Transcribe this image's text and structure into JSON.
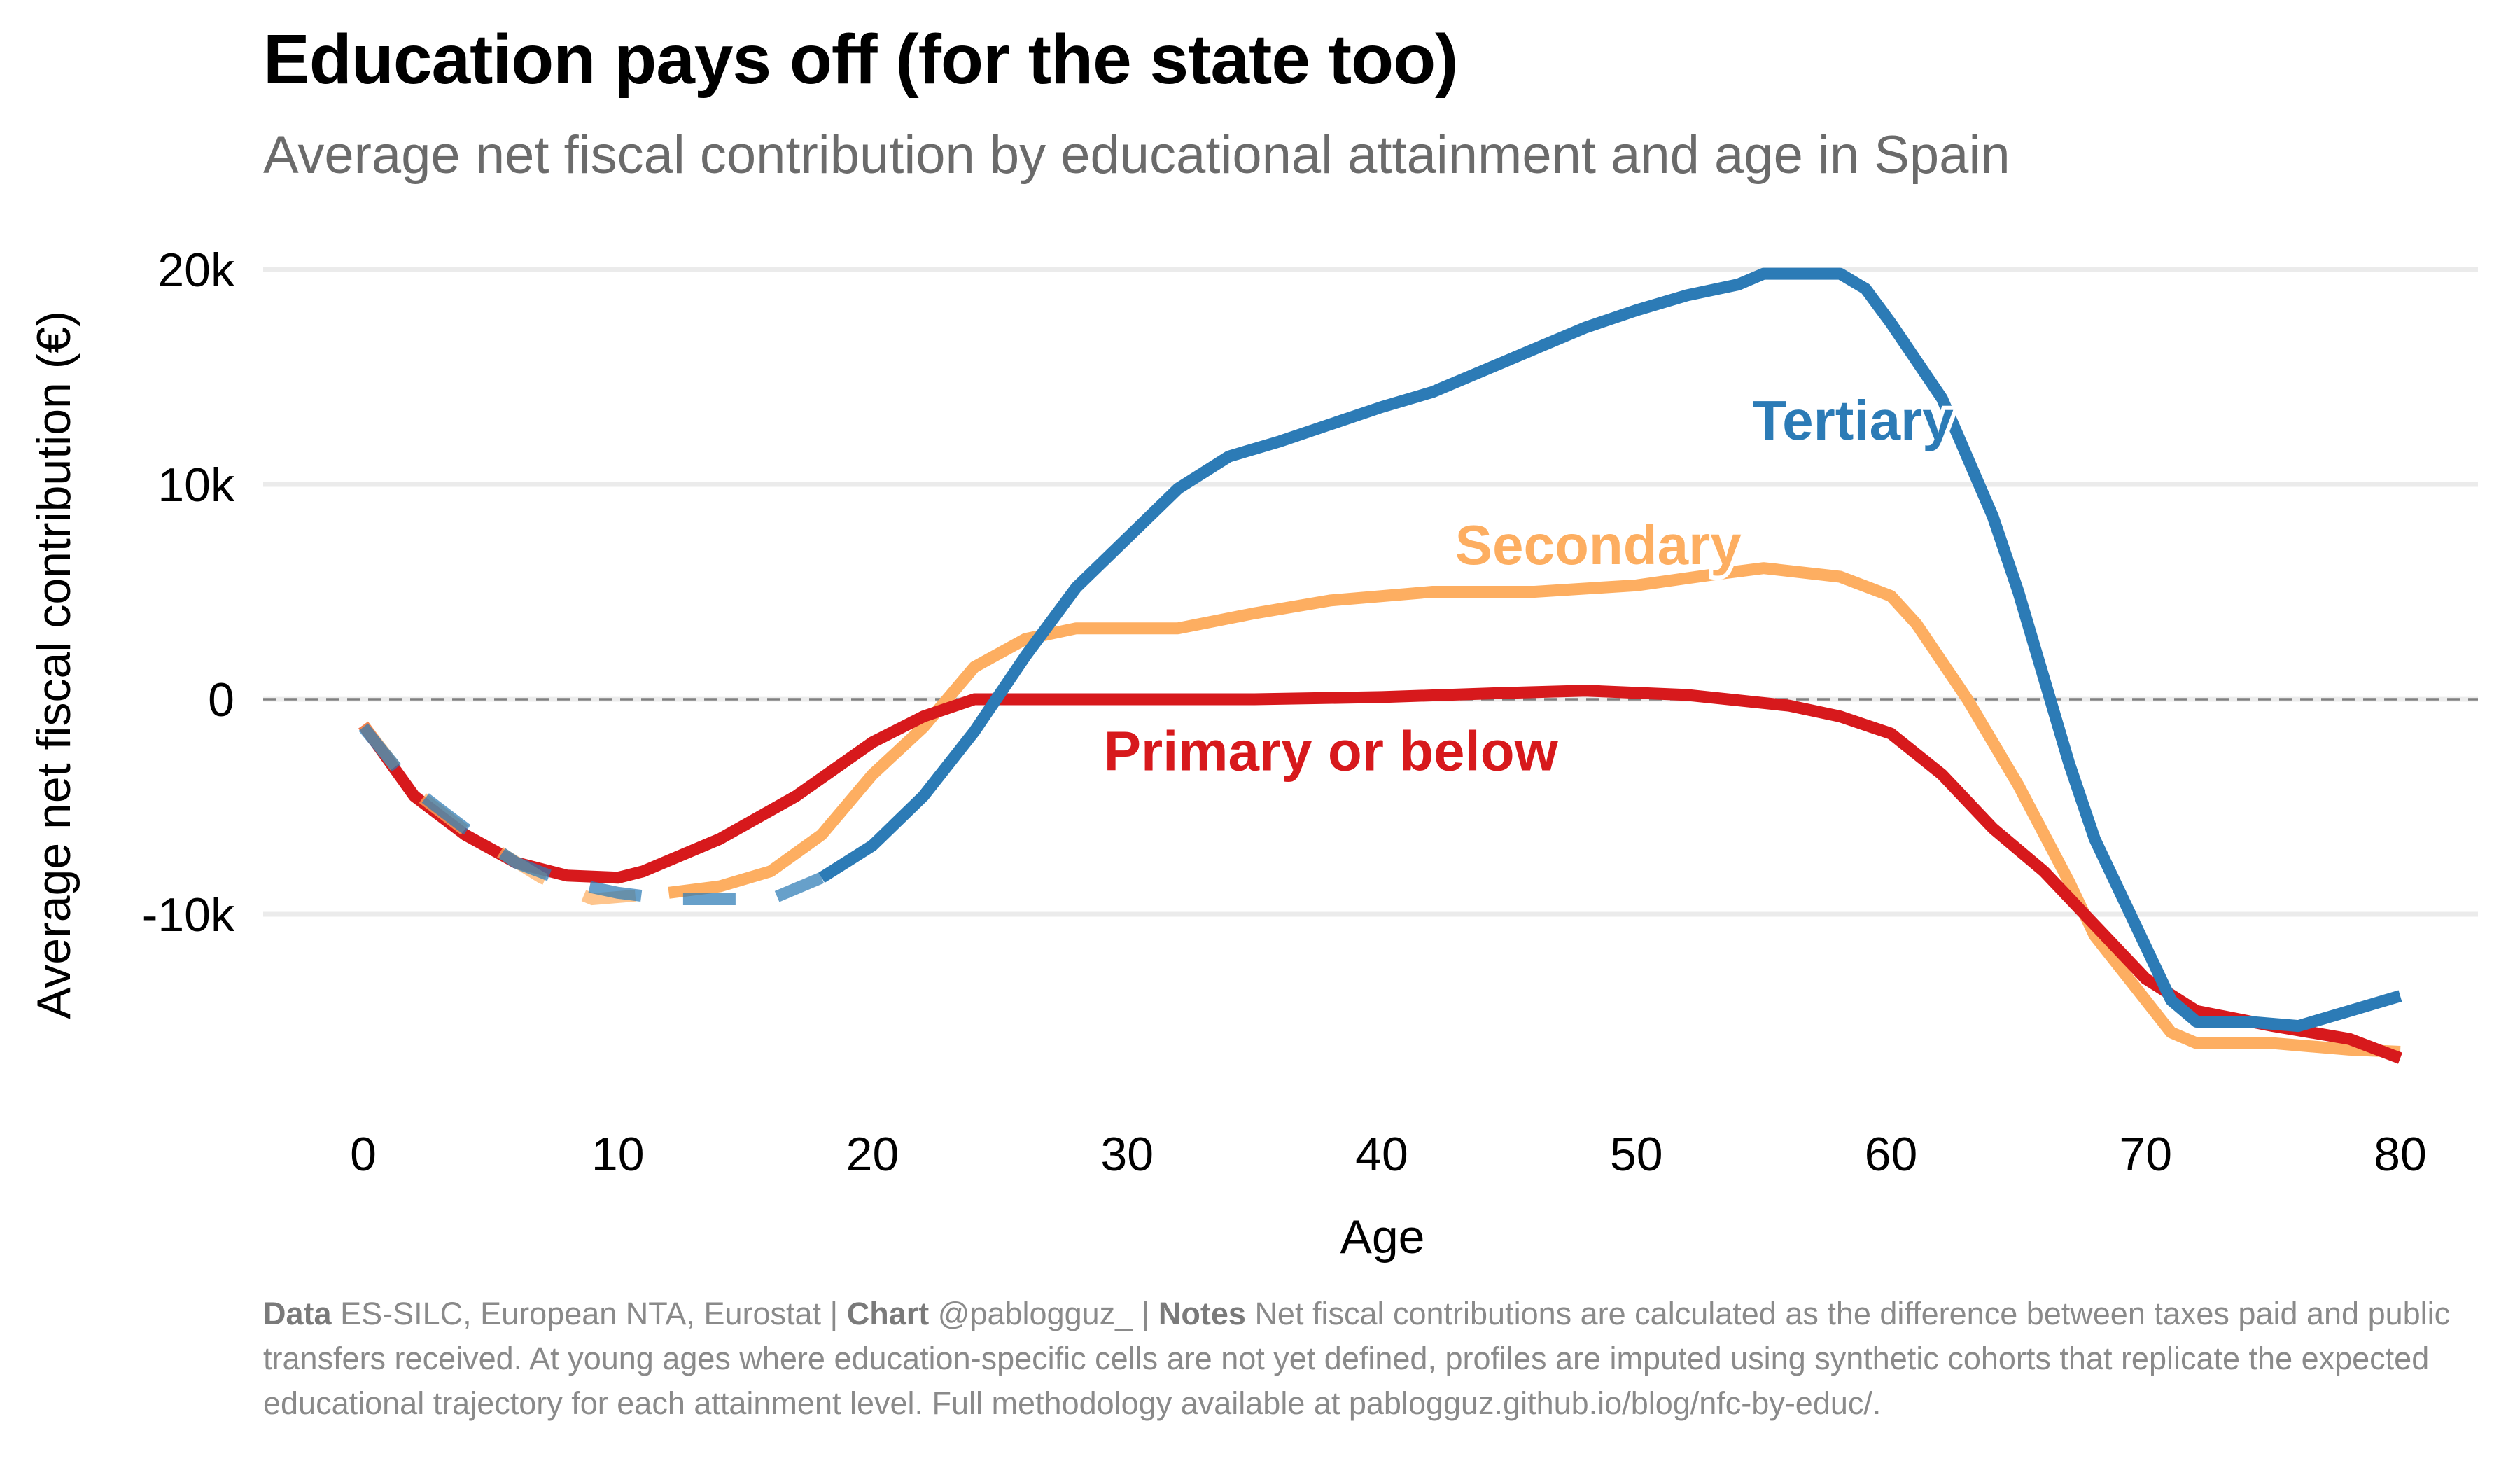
{
  "title": "Education pays off (for the state too)",
  "subtitle": "Average net fiscal contribution by educational attainment and age in Spain",
  "footer": {
    "data_label": "Data",
    "data_text": "ES-SILC, European NTA, Eurostat |",
    "chart_label": "Chart",
    "chart_text": "@pablogguz_ |",
    "notes_label": "Notes",
    "notes_text": "Net fiscal contributions are calculated as the difference between taxes paid and public transfers received. At young ages where education-specific cells are not yet defined, profiles are imputed using synthetic cohorts that replicate the expected educational trajectory for each attainment level. Full methodology available at pablogguz.github.io/blog/nfc-by-educ/."
  },
  "chart_data": {
    "type": "line",
    "xlabel": "Age",
    "ylabel": "Average net fiscal contribution (€)",
    "xlim": [
      0,
      80
    ],
    "ylim": [
      -17500,
      21000
    ],
    "xticks": [
      0,
      10,
      20,
      30,
      40,
      50,
      60,
      70,
      80
    ],
    "xtick_labels": [
      "0",
      "10",
      "20",
      "30",
      "40",
      "50",
      "60",
      "70",
      "80"
    ],
    "yticks": [
      -10000,
      0,
      10000,
      20000
    ],
    "ytick_labels": [
      "-10k",
      "0",
      "10k",
      "20k"
    ],
    "grid": "horizontal",
    "zero_line": "dashed",
    "legend": "direct labels",
    "series": [
      {
        "name": "Primary or below",
        "color": "#d7191c",
        "imputed_until_age": 0,
        "label_at": [
          38,
          -2400
        ],
        "x": [
          0,
          2,
          4,
          6,
          8,
          10,
          11,
          14,
          17,
          20,
          22,
          24,
          27,
          30,
          35,
          40,
          45,
          48,
          52,
          56,
          58,
          60,
          62,
          64,
          66,
          68,
          70,
          72,
          75,
          78,
          80
        ],
        "y": [
          -1200,
          -4500,
          -6300,
          -7600,
          -8200,
          -8300,
          -8000,
          -6500,
          -4500,
          -2000,
          -800,
          0,
          0,
          0,
          0,
          100,
          300,
          400,
          200,
          -300,
          -800,
          -1600,
          -3500,
          -6000,
          -8000,
          -10500,
          -13000,
          -14500,
          -15200,
          -15800,
          -16700
        ]
      },
      {
        "name": "Secondary",
        "color": "#fdae61",
        "imputed_until_age": 12,
        "label_at": [
          48.5,
          7200
        ],
        "x": [
          0,
          2,
          4,
          7,
          9,
          12,
          14,
          16,
          18,
          20,
          22,
          24,
          26,
          28,
          30,
          32,
          35,
          38,
          42,
          46,
          50,
          53,
          55,
          58,
          60,
          61,
          63,
          65,
          67,
          68,
          70,
          71,
          72,
          75,
          78,
          80
        ],
        "y": [
          -1200,
          -4300,
          -6100,
          -8300,
          -9300,
          -9000,
          -8700,
          -8000,
          -6300,
          -3500,
          -1300,
          1500,
          2800,
          3300,
          3300,
          3300,
          4000,
          4600,
          5000,
          5000,
          5300,
          5800,
          6100,
          5700,
          4800,
          3500,
          0,
          -4000,
          -8500,
          -11000,
          -14000,
          -15500,
          -16000,
          -16000,
          -16300,
          -16400
        ]
      },
      {
        "name": "Tertiary",
        "color": "#2c7bb6",
        "imputed_until_age": 18,
        "label_at": [
          58.5,
          13000
        ],
        "x": [
          0,
          2,
          4,
          6,
          8,
          10,
          12,
          14,
          16,
          18,
          20,
          22,
          24,
          26,
          28,
          30,
          32,
          34,
          36,
          38,
          40,
          42,
          44,
          46,
          48,
          50,
          52,
          54,
          55,
          58,
          59,
          60,
          62,
          64,
          65,
          66,
          67,
          68,
          70,
          71,
          72,
          74,
          76,
          78,
          80
        ],
        "y": [
          -1300,
          -4200,
          -6000,
          -7600,
          -8500,
          -9000,
          -9300,
          -9300,
          -9300,
          -8300,
          -6800,
          -4500,
          -1500,
          2000,
          5200,
          7500,
          9800,
          11300,
          12000,
          12800,
          13600,
          14300,
          15300,
          16300,
          17300,
          18100,
          18800,
          19300,
          19800,
          19800,
          19100,
          17500,
          14000,
          8500,
          5000,
          1000,
          -3000,
          -6500,
          -11500,
          -14000,
          -15000,
          -15000,
          -15200,
          -14500,
          -13800
        ]
      }
    ]
  }
}
